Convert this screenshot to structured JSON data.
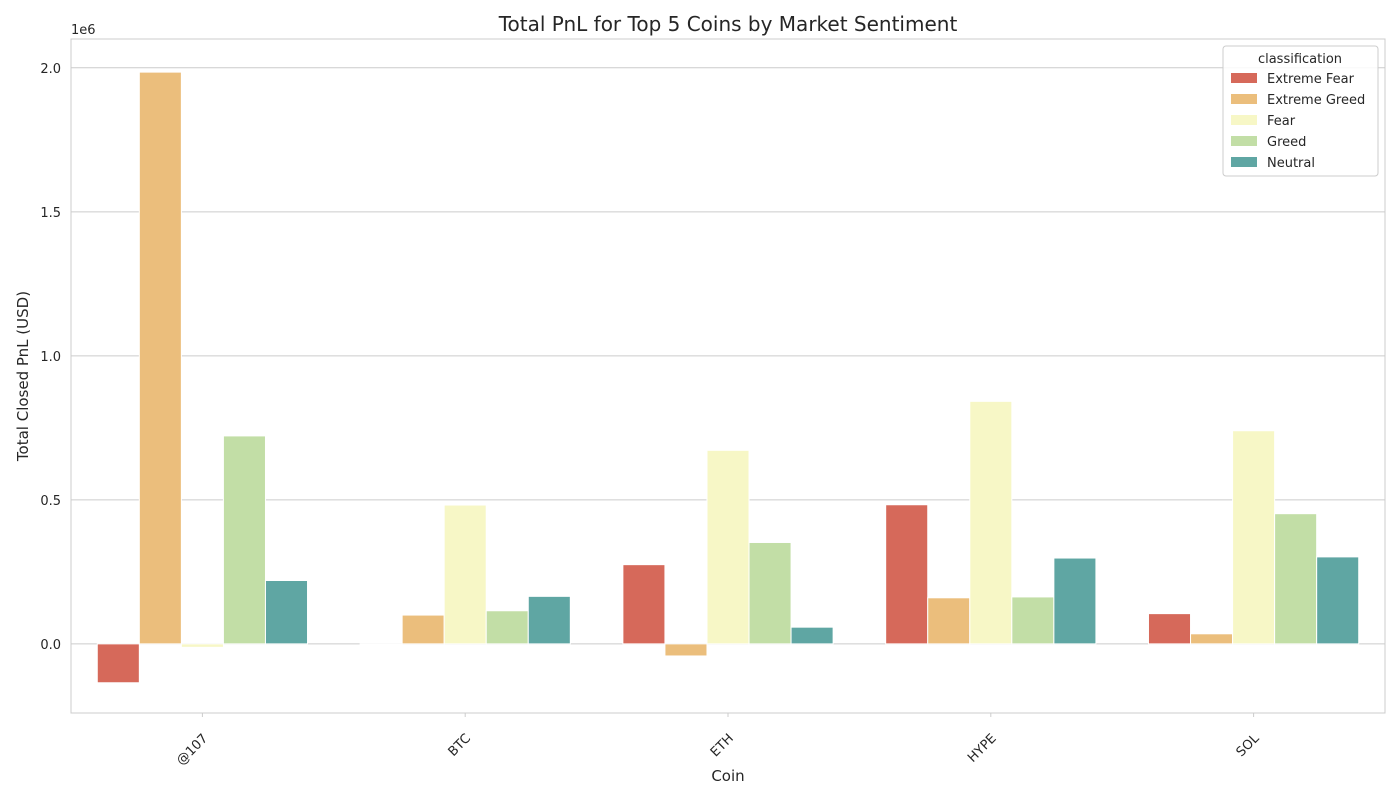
{
  "chart_data": {
    "type": "bar",
    "title": "Total PnL for Top 5 Coins by Market Sentiment",
    "xlabel": "Coin",
    "ylabel": "Total Closed PnL (USD)",
    "y_scale_note": "1e6",
    "ylim": [
      -240000,
      2100000
    ],
    "yticks": [
      0,
      500000,
      1000000,
      1500000,
      2000000
    ],
    "ytick_labels": [
      "0.0",
      "0.5",
      "1.0",
      "1.5",
      "2.0"
    ],
    "grid": true,
    "legend_position": "top-right",
    "legend_title": "classification",
    "categories": [
      "@107",
      "BTC",
      "ETH",
      "HYPE",
      "SOL"
    ],
    "series": [
      {
        "name": "Extreme Fear",
        "color": "#d6695a",
        "values": [
          -135000,
          0,
          275000,
          483000,
          105000
        ]
      },
      {
        "name": "Extreme Greed",
        "color": "#ebbe7c",
        "values": [
          1985000,
          100000,
          -42000,
          160000,
          35000
        ]
      },
      {
        "name": "Fear",
        "color": "#f7f7c6",
        "values": [
          -12000,
          482000,
          672000,
          842000,
          740000
        ]
      },
      {
        "name": "Greed",
        "color": "#c2dea6",
        "values": [
          722000,
          115000,
          352000,
          163000,
          452000
        ]
      },
      {
        "name": "Neutral",
        "color": "#5fa6a3",
        "values": [
          220000,
          165000,
          58000,
          298000,
          302000
        ]
      }
    ]
  }
}
